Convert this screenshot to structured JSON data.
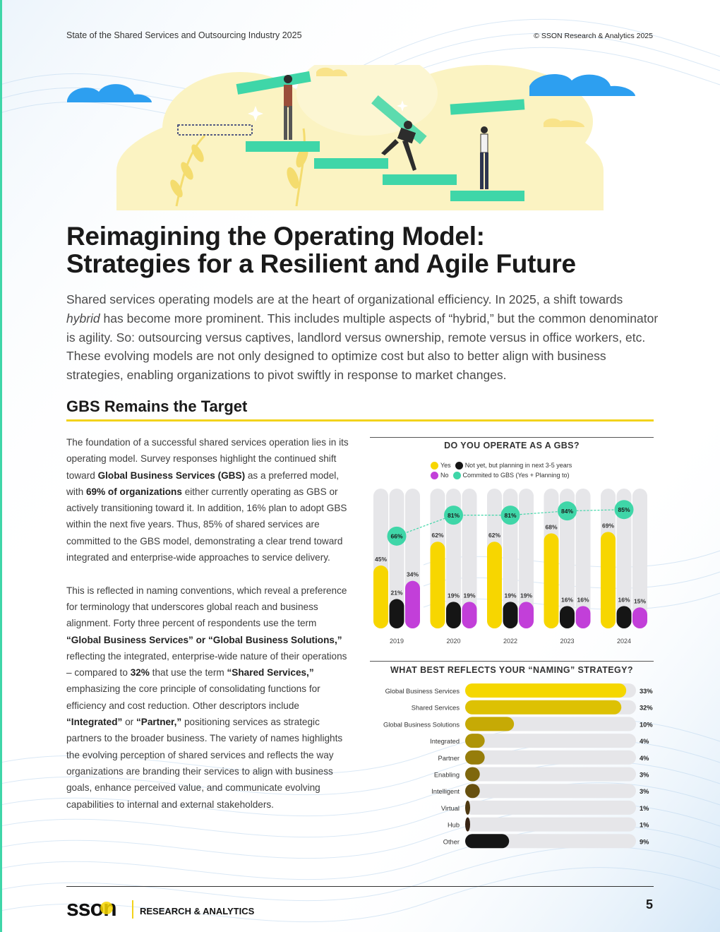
{
  "header": {
    "report_title": "State of the Shared Services and Outsourcing Industry 2025",
    "copyright": "© SSON Research & Analytics 2025"
  },
  "title": {
    "line1": "Reimagining the Operating Model:",
    "line2": "Strategies for a Resilient and Agile Future"
  },
  "intro": {
    "part1": "Shared services operating models are at the heart of organizational efficiency. In 2025, a shift towards ",
    "italic": "hybrid",
    "part2": " has become more prominent. This includes multiple aspects of “hybrid,” but the common denominator is agility. So: outsourcing versus captives, landlord versus ownership, remote versus in office workers, etc. These evolving models are not only designed to optimize cost but also to better align with business strategies, enabling organizations to pivot swiftly in response to market changes."
  },
  "section": {
    "title": "GBS Remains the Target"
  },
  "body": {
    "p1_a": "The foundation of a successful shared services operation lies in its operating model. Survey responses highlight the continued shift toward ",
    "p1_b": "Global Business Services (GBS)",
    "p1_c": " as a preferred model, with ",
    "p1_d": "69% of organizations",
    "p1_e": " either currently operating as GBS or actively transitioning toward it. In addition, 16% plan to adopt GBS within the next five years. Thus, 85% of shared services are committed to the GBS model, demonstrating a clear trend toward integrated and enterprise-wide approaches to service delivery.",
    "p2_a": "This is reflected in naming conventions, which reveal a preference for terminology that underscores global reach and business alignment. Forty three percent of respondents use the term ",
    "p2_b": "“Global Business Services” or “Global Business Solutions,”",
    "p2_c": " reflecting the integrated, enterprise-wide nature of their operations – compared to ",
    "p2_d": "32%",
    "p2_e": " that use the term ",
    "p2_f": "“Shared Services,”",
    "p2_g": " emphasizing the core principle of consolidating functions for efficiency and cost reduction. Other descriptors include ",
    "p2_h": "“Integrated”",
    "p2_i": " or ",
    "p2_j": "“Partner,”",
    "p2_k": " positioning services as strategic partners to the broader business. The variety of names highlights the evolving perception of shared services and reflects the way organizations are branding their services to align with business goals, enhance perceived value, and communicate evolving capabilities to internal and external stakeholders."
  },
  "footer": {
    "logo_text": "sson",
    "logo_tagline": "RESEARCH & ANALYTICS",
    "page_number": "5"
  },
  "colors": {
    "yellow": "#f7d600",
    "black": "#151515",
    "purple": "#c23fd9",
    "teal": "#3fd6a8",
    "track": "#e6e6e9"
  },
  "chart_data": [
    {
      "type": "bar",
      "title": "DO YOU OPERATE AS A GBS?",
      "legend": {
        "yes": "Yes",
        "no": "No",
        "planning": "Not yet, but planning in next 3-5 years",
        "committed": "Commited to GBS (Yes + Planning to)"
      },
      "categories": [
        "2019",
        "2020",
        "2022",
        "2023",
        "2024"
      ],
      "ylim": [
        0,
        100
      ],
      "series": [
        {
          "name": "Yes",
          "values": [
            45,
            62,
            62,
            68,
            69
          ],
          "labels": [
            "45%",
            "62%",
            "62%",
            "68%",
            "69%"
          ]
        },
        {
          "name": "Not yet, but planning in next 3-5 years",
          "values": [
            21,
            19,
            19,
            16,
            16
          ],
          "labels": [
            "21%",
            "19%",
            "19%",
            "16%",
            "16%"
          ]
        },
        {
          "name": "No",
          "values": [
            34,
            19,
            19,
            16,
            15
          ],
          "labels": [
            "34%",
            "19%",
            "19%",
            "16%",
            "15%"
          ]
        },
        {
          "name": "Commited to GBS (Yes + Planning to)",
          "values": [
            66,
            81,
            81,
            84,
            85
          ],
          "labels": [
            "66%",
            "81%",
            "81%",
            "84%",
            "85%"
          ]
        }
      ]
    },
    {
      "type": "bar",
      "orientation": "horizontal",
      "title": "WHAT BEST REFLECTS YOUR “NAMING” STRATEGY?",
      "xlim": [
        0,
        35
      ],
      "categories": [
        "Global Business Services",
        "Shared Services",
        "Global Business Solutions",
        "Integrated",
        "Partner",
        "Enabling",
        "Intelligent",
        "Virtual",
        "Hub",
        "Other"
      ],
      "values": [
        33,
        32,
        10,
        4,
        4,
        3,
        3,
        1,
        1,
        9
      ],
      "labels": [
        "33%",
        "32%",
        "10%",
        "4%",
        "4%",
        "3%",
        "3%",
        "1%",
        "1%",
        "9%"
      ]
    }
  ]
}
